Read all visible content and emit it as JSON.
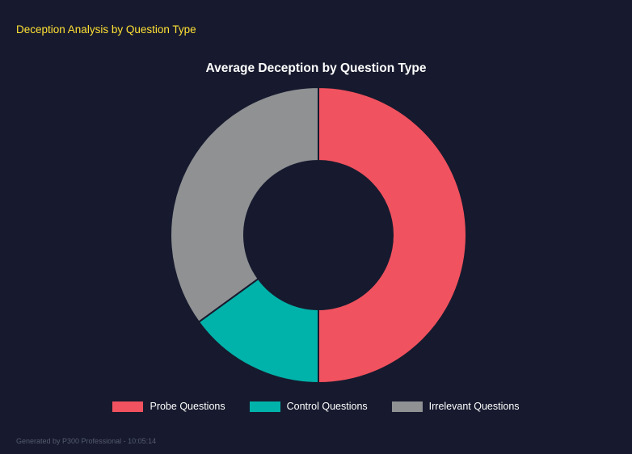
{
  "page": {
    "header": "Deception Analysis by Question Type",
    "footer": "Generated by P300 Professional - 10:05:14"
  },
  "colors": {
    "background": "#171a2e",
    "header_text": "#ffe135",
    "title_text": "#ffffff",
    "footer_text": "#565b6e"
  },
  "chart_data": {
    "type": "pie",
    "subtype": "donut",
    "title": "Average Deception by Question Type",
    "categories": [
      "Probe Questions",
      "Control Questions",
      "Irrelevant Questions"
    ],
    "values": [
      50,
      15,
      35
    ],
    "colors": [
      "#f1525f",
      "#00b3aa",
      "#8f9193"
    ],
    "legend_position": "bottom",
    "inner_radius_ratio": 0.5,
    "start_angle_deg": 0,
    "direction": "clockwise"
  }
}
